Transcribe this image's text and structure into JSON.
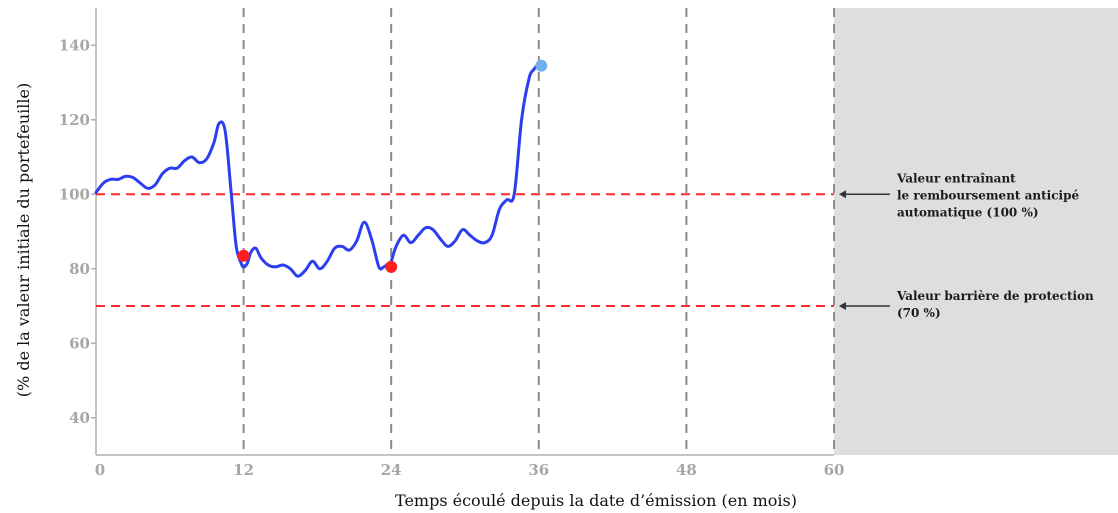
{
  "chart_data": {
    "type": "line",
    "xlabel": "Temps écoulé depuis la date d’émission (en mois)",
    "ylabel": "(% de la valeur initiale du portefeuille)",
    "x_ticks": [
      0,
      12,
      24,
      36,
      48,
      60
    ],
    "y_ticks": [
      40,
      60,
      80,
      100,
      120,
      140
    ],
    "xlim": [
      0,
      60
    ],
    "ylim": [
      30,
      150
    ],
    "grid": "vertical dashed lines at 12, 24, 36, 48, 60",
    "shaded_region": {
      "x_from": 60,
      "color": "#dedede"
    },
    "series": [
      {
        "color": "#2b3ff0",
        "x": [
          0,
          0.6,
          1.2,
          1.8,
          2.4,
          3,
          3.6,
          4.2,
          4.8,
          5.4,
          6,
          6.6,
          7.2,
          7.8,
          8.4,
          9,
          9.6,
          10,
          10.5,
          11,
          11.4,
          11.8,
          12,
          12.3,
          12.6,
          13,
          13.4,
          14,
          14.6,
          15.2,
          15.8,
          16.4,
          17,
          17.6,
          18.2,
          18.8,
          19.4,
          20,
          20.6,
          21.2,
          21.8,
          22.4,
          23,
          23.4,
          23.8,
          24,
          24.4,
          25,
          25.6,
          26.2,
          26.8,
          27.4,
          28,
          28.6,
          29.2,
          29.8,
          30.4,
          31,
          31.6,
          32.2,
          32.8,
          33.4,
          34,
          34.6,
          35.2,
          35.6,
          36,
          36.4
        ],
        "values": [
          100.5,
          103,
          104,
          104,
          104.8,
          104.5,
          103,
          101.6,
          102.5,
          105.5,
          107,
          107,
          109,
          110,
          108.5,
          109.5,
          114,
          119,
          117,
          100,
          86,
          81.5,
          80.5,
          81.5,
          84.5,
          85.5,
          83,
          81,
          80.5,
          81,
          80,
          78,
          79.5,
          82,
          80,
          82,
          85.5,
          86,
          85,
          87.5,
          92.5,
          88,
          80.5,
          80.5,
          81.5,
          82,
          86,
          89,
          87,
          89,
          91,
          90.5,
          88,
          86,
          87.5,
          90.5,
          89,
          87.5,
          87,
          89,
          96,
          98.5,
          100,
          120,
          131,
          133.5,
          135,
          134.5
        ]
      }
    ],
    "markers": [
      {
        "x": 12,
        "y": 83.5,
        "color": "#ff1f1f"
      },
      {
        "x": 24,
        "y": 80.5,
        "color": "#ff1f1f"
      },
      {
        "x": 36.2,
        "y": 134.5,
        "color": "#6fb0ee"
      }
    ],
    "reference_lines": [
      {
        "y": 100,
        "color": "#ff2a2a",
        "style": "dashed"
      },
      {
        "y": 70,
        "color": "#ff2a2a",
        "style": "dashed"
      }
    ],
    "annotations": [
      {
        "y": 100,
        "lines": [
          "Valeur entraînant",
          "le remboursement anticipé",
          "automatique (100 %)"
        ]
      },
      {
        "y": 70,
        "lines": [
          "Valeur barrière de protection",
          "(70 %)"
        ]
      }
    ]
  }
}
